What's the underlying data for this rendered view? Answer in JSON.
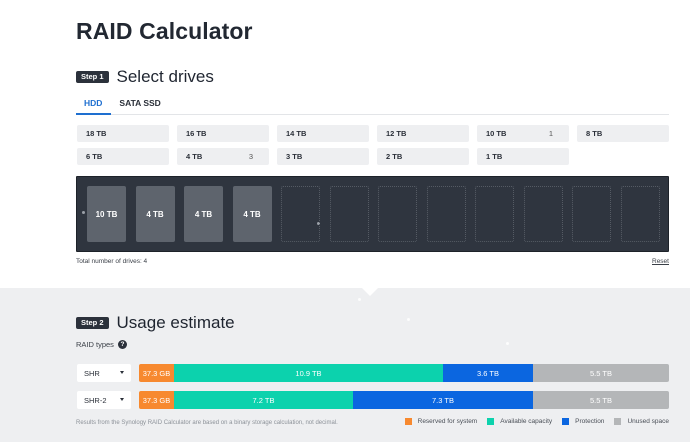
{
  "page": {
    "title": "RAID Calculator"
  },
  "step1": {
    "badge": "Step 1",
    "title": "Select drives",
    "tabs": [
      {
        "label": "HDD",
        "active": true
      },
      {
        "label": "SATA SSD",
        "active": false
      }
    ],
    "drive_options": [
      {
        "label": "18 TB",
        "count": ""
      },
      {
        "label": "16 TB",
        "count": ""
      },
      {
        "label": "14 TB",
        "count": ""
      },
      {
        "label": "12 TB",
        "count": ""
      },
      {
        "label": "10 TB",
        "count": "1"
      },
      {
        "label": "8 TB",
        "count": ""
      },
      {
        "label": "6 TB",
        "count": ""
      },
      {
        "label": "4 TB",
        "count": "3"
      },
      {
        "label": "3 TB",
        "count": ""
      },
      {
        "label": "2 TB",
        "count": ""
      },
      {
        "label": "1 TB",
        "count": ""
      }
    ],
    "bay_slots": [
      {
        "label": "10 TB",
        "filled": true
      },
      {
        "label": "4 TB",
        "filled": true
      },
      {
        "label": "4 TB",
        "filled": true
      },
      {
        "label": "4 TB",
        "filled": true
      },
      {
        "label": "",
        "filled": false
      },
      {
        "label": "",
        "filled": false
      },
      {
        "label": "",
        "filled": false
      },
      {
        "label": "",
        "filled": false
      },
      {
        "label": "",
        "filled": false
      },
      {
        "label": "",
        "filled": false
      },
      {
        "label": "",
        "filled": false
      },
      {
        "label": "",
        "filled": false
      }
    ],
    "total_drives_text": "Total number of drives: 4",
    "reset_label": "Reset"
  },
  "step2": {
    "badge": "Step 2",
    "title": "Usage estimate",
    "raid_types_label": "RAID types",
    "help_icon": "?",
    "rows": [
      {
        "raid_type": "SHR",
        "segments": [
          {
            "type": "reserved",
            "label": "37.3 GB",
            "value_tb": 0.0373
          },
          {
            "type": "available",
            "label": "10.9 TB",
            "value_tb": 10.9
          },
          {
            "type": "protection",
            "label": "3.6 TB",
            "value_tb": 3.6
          },
          {
            "type": "unused",
            "label": "5.5 TB",
            "value_tb": 5.5
          }
        ]
      },
      {
        "raid_type": "SHR-2",
        "segments": [
          {
            "type": "reserved",
            "label": "37.3 GB",
            "value_tb": 0.0373
          },
          {
            "type": "available",
            "label": "7.2 TB",
            "value_tb": 7.2
          },
          {
            "type": "protection",
            "label": "7.3 TB",
            "value_tb": 7.3
          },
          {
            "type": "unused",
            "label": "5.5 TB",
            "value_tb": 5.5
          }
        ]
      }
    ],
    "footnote": "Results from the Synology RAID Calculator are based on a binary storage calculation, not decimal.",
    "legend": [
      {
        "type": "reserved",
        "label": "Reserved for system"
      },
      {
        "type": "available",
        "label": "Available capacity"
      },
      {
        "type": "protection",
        "label": "Protection"
      },
      {
        "type": "unused",
        "label": "Unused space"
      }
    ],
    "colors": {
      "reserved": "#f7892f",
      "available": "#0cd2ad",
      "protection": "#0b66e0",
      "unused": "#b4b6b8"
    }
  }
}
